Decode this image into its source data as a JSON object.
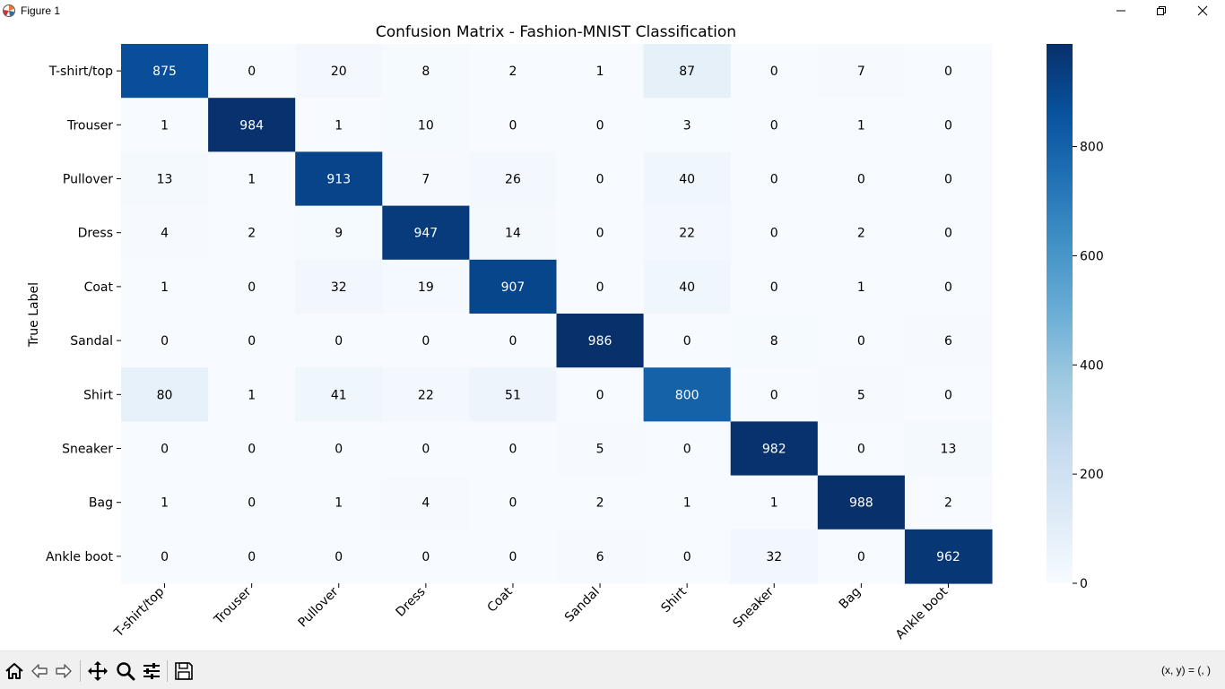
{
  "window": {
    "title": "Figure 1",
    "icons": [
      "matplotlib-icon",
      "minimize-icon",
      "restore-icon",
      "close-icon"
    ]
  },
  "toolbar": {
    "buttons": [
      "home-icon",
      "back-icon",
      "forward-icon",
      "pan-icon",
      "zoom-icon",
      "configure-subplots-icon",
      "save-icon"
    ],
    "coords_label": "(x, y) = (, )"
  },
  "chart_data": {
    "type": "heatmap",
    "title": "Confusion Matrix - Fashion-MNIST Classification",
    "xlabel": "",
    "ylabel": "True Label",
    "x_categories": [
      "T-shirt/top",
      "Trouser",
      "Pullover",
      "Dress",
      "Coat",
      "Sandal",
      "Shirt",
      "Sneaker",
      "Bag",
      "Ankle boot"
    ],
    "y_categories": [
      "T-shirt/top",
      "Trouser",
      "Pullover",
      "Dress",
      "Coat",
      "Sandal",
      "Shirt",
      "Sneaker",
      "Bag",
      "Ankle boot"
    ],
    "values": [
      [
        875,
        0,
        20,
        8,
        2,
        1,
        87,
        0,
        7,
        0
      ],
      [
        1,
        984,
        1,
        10,
        0,
        0,
        3,
        0,
        1,
        0
      ],
      [
        13,
        1,
        913,
        7,
        26,
        0,
        40,
        0,
        0,
        0
      ],
      [
        4,
        2,
        9,
        947,
        14,
        0,
        22,
        0,
        2,
        0
      ],
      [
        1,
        0,
        32,
        19,
        907,
        0,
        40,
        0,
        1,
        0
      ],
      [
        0,
        0,
        0,
        0,
        0,
        986,
        0,
        8,
        0,
        6
      ],
      [
        80,
        1,
        41,
        22,
        51,
        0,
        800,
        0,
        5,
        0
      ],
      [
        0,
        0,
        0,
        0,
        0,
        5,
        0,
        982,
        0,
        13
      ],
      [
        1,
        0,
        1,
        4,
        0,
        2,
        1,
        1,
        988,
        2
      ],
      [
        0,
        0,
        0,
        0,
        0,
        6,
        0,
        32,
        0,
        962
      ]
    ],
    "colorbar": {
      "colormap": "Blues",
      "vmin": 0,
      "vmax": 988,
      "ticks": [
        0,
        200,
        400,
        600,
        800
      ]
    },
    "text_color_light": "#ffffff",
    "text_color_dark": "#000000"
  }
}
